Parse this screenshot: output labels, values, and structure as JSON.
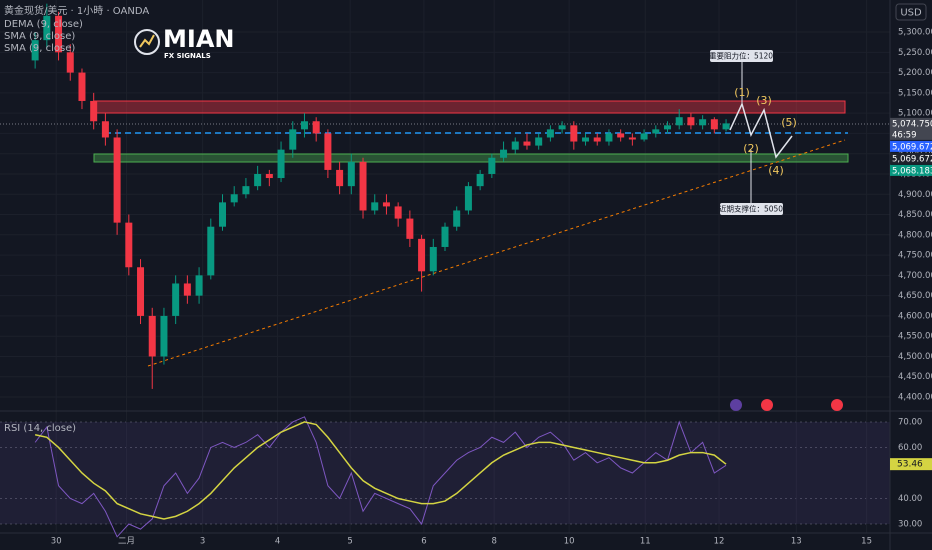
{
  "header": {
    "symbol": "黄金现货/美元 · 1小時 · OANDA",
    "indicators": [
      "DEMA (9, close)",
      "SMA (9, close)",
      "SMA (9, close)"
    ],
    "logo": "MIAN",
    "logo_sub": "FX SIGNALS",
    "currency": "USD"
  },
  "annotations": {
    "waves": [
      "(1)",
      "(2)",
      "(3)",
      "(4)",
      "(5)"
    ],
    "resistance": "重要阻力位：5120",
    "support": "近期支撑位：5050"
  },
  "chart_data": [
    {
      "type": "candlestick",
      "up_color": "#089981",
      "down_color": "#f23645",
      "x": [
        3,
        4,
        5,
        6,
        7,
        8,
        9,
        10,
        11,
        12,
        13,
        14,
        15,
        16,
        17,
        18,
        19,
        20,
        21,
        22,
        23,
        24,
        25,
        26,
        27,
        28,
        29,
        30,
        31,
        32,
        33,
        34,
        35,
        36,
        37,
        38,
        39,
        40,
        41,
        42,
        43,
        44,
        45,
        46,
        47,
        48,
        49,
        50,
        51,
        52,
        53,
        54,
        55,
        56,
        57,
        58,
        59,
        60,
        61,
        62
      ],
      "open": [
        5230,
        5280,
        5340,
        5250,
        5200,
        5130,
        5080,
        5040,
        4830,
        4720,
        4600,
        4500,
        4600,
        4680,
        4650,
        4700,
        4820,
        4880,
        4900,
        4920,
        4950,
        4940,
        5010,
        5060,
        5080,
        5050,
        4960,
        4920,
        4980,
        4860,
        4880,
        4870,
        4840,
        4790,
        4710,
        4770,
        4820,
        4860,
        4920,
        4950,
        4990,
        5010,
        5030,
        5020,
        5040,
        5060,
        5070,
        5030,
        5040,
        5030,
        5050,
        5040,
        5035,
        5050,
        5060,
        5070,
        5090,
        5070,
        5085,
        5060
      ],
      "high": [
        5300,
        5370,
        5350,
        5270,
        5210,
        5150,
        5100,
        5060,
        4850,
        4740,
        4620,
        4620,
        4700,
        4700,
        4720,
        4840,
        4900,
        4920,
        4940,
        4970,
        4960,
        5030,
        5080,
        5100,
        5090,
        5060,
        4980,
        5000,
        4990,
        4900,
        4900,
        4880,
        4860,
        4800,
        4790,
        4830,
        4870,
        4930,
        4960,
        5000,
        5030,
        5040,
        5050,
        5050,
        5070,
        5080,
        5080,
        5050,
        5050,
        5060,
        5060,
        5050,
        5060,
        5070,
        5080,
        5110,
        5100,
        5095,
        5090,
        5085
      ],
      "low": [
        5210,
        5260,
        5230,
        5180,
        5110,
        5060,
        5020,
        4800,
        4700,
        4580,
        4420,
        4480,
        4580,
        4630,
        4630,
        4690,
        4810,
        4870,
        4890,
        4910,
        4920,
        4930,
        4990,
        5040,
        5030,
        4940,
        4900,
        4900,
        4840,
        4850,
        4850,
        4820,
        4770,
        4660,
        4700,
        4760,
        4810,
        4850,
        4910,
        4940,
        4980,
        5000,
        5010,
        5010,
        5030,
        5050,
        5010,
        5020,
        5020,
        5020,
        5030,
        5020,
        5030,
        5040,
        5050,
        5060,
        5060,
        5060,
        5050,
        5055
      ],
      "close": [
        5280,
        5340,
        5250,
        5200,
        5130,
        5080,
        5040,
        4830,
        4720,
        4600,
        4500,
        4600,
        4680,
        4650,
        4700,
        4820,
        4880,
        4900,
        4920,
        4950,
        4940,
        5010,
        5060,
        5080,
        5050,
        4960,
        4920,
        4980,
        4860,
        4880,
        4870,
        4840,
        4790,
        4710,
        4770,
        4820,
        4860,
        4920,
        4950,
        4990,
        5010,
        5030,
        5020,
        5040,
        5060,
        5070,
        5030,
        5040,
        5030,
        5050,
        5040,
        5035,
        5050,
        5060,
        5070,
        5090,
        5070,
        5085,
        5060,
        5074.75
      ],
      "xlim": [
        0,
        76
      ],
      "ylim": [
        4368,
        5379
      ],
      "yticks": [
        {
          "value": 4400,
          "label": "4,400.000"
        },
        {
          "value": 4450,
          "label": "4,450.000"
        },
        {
          "value": 4500,
          "label": "4,500.000"
        },
        {
          "value": 4550,
          "label": "4,550.000"
        },
        {
          "value": 4600,
          "label": "4,600.000"
        },
        {
          "value": 4650,
          "label": "4,650.000"
        },
        {
          "value": 4700,
          "label": "4,700.000"
        },
        {
          "value": 4750,
          "label": "4,750.000"
        },
        {
          "value": 4800,
          "label": "4,800.000"
        },
        {
          "value": 4850,
          "label": "4,850.000"
        },
        {
          "value": 4900,
          "label": "4,900.000"
        },
        {
          "value": 4950,
          "label": "4,950.000"
        },
        {
          "value": 5000,
          "label": "5,000.000"
        },
        {
          "value": 5050,
          "label": "5,050.000"
        },
        {
          "value": 5100,
          "label": "5,100.000"
        },
        {
          "value": 5150,
          "label": "5,150.000"
        },
        {
          "value": 5200,
          "label": "5,200.000"
        },
        {
          "value": 5250,
          "label": "5,250.000"
        },
        {
          "value": 5300,
          "label": "5,300.000"
        }
      ],
      "price_tags": [
        {
          "value": 5074.75,
          "label": "5,074.750",
          "sub": "46:59",
          "color": "#434651"
        },
        {
          "value": 5069.672,
          "label": "5,069.672",
          "color": "#2962ff"
        },
        {
          "value": 5069.672,
          "label": "5,069.672",
          "color": "#1e222d"
        },
        {
          "value": 5068.183,
          "label": "5,068.183",
          "color": "#089981"
        }
      ]
    },
    {
      "type": "line",
      "title": "RSI (14, close)",
      "x": [
        3,
        4,
        5,
        6,
        7,
        8,
        9,
        10,
        11,
        12,
        13,
        14,
        15,
        16,
        17,
        18,
        19,
        20,
        21,
        22,
        23,
        24,
        25,
        26,
        27,
        28,
        29,
        30,
        31,
        32,
        33,
        34,
        35,
        36,
        37,
        38,
        39,
        40,
        41,
        42,
        43,
        44,
        45,
        46,
        47,
        48,
        49,
        50,
        51,
        52,
        53,
        54,
        55,
        56,
        57,
        58,
        59,
        60,
        61,
        62
      ],
      "series": [
        {
          "color": "#7e57c2",
          "values": [
            62,
            68,
            45,
            40,
            38,
            42,
            35,
            25,
            30,
            28,
            32,
            45,
            50,
            42,
            48,
            60,
            62,
            60,
            62,
            65,
            60,
            66,
            70,
            72,
            62,
            45,
            40,
            50,
            35,
            42,
            40,
            38,
            36,
            30,
            45,
            50,
            55,
            58,
            60,
            64,
            62,
            66,
            60,
            64,
            66,
            62,
            55,
            58,
            54,
            56,
            52,
            50,
            54,
            58,
            55,
            70,
            58,
            62,
            50,
            53
          ]
        },
        {
          "color": "#d4d442",
          "values": [
            65,
            64,
            60,
            55,
            50,
            46,
            43,
            38,
            36,
            34,
            33,
            32,
            33,
            35,
            38,
            42,
            47,
            52,
            56,
            60,
            63,
            66,
            68,
            70,
            69,
            64,
            58,
            52,
            47,
            44,
            42,
            40,
            39,
            38,
            38,
            39,
            42,
            46,
            50,
            54,
            57,
            59,
            61,
            62,
            62,
            61,
            60,
            59,
            58,
            57,
            56,
            55,
            54,
            54,
            55,
            57,
            58,
            58,
            57,
            53.46
          ]
        }
      ],
      "xlim": [
        0,
        76
      ],
      "ylim": [
        25.7,
        73.9
      ],
      "yticks": [
        {
          "value": 30,
          "label": "30.00"
        },
        {
          "value": 40,
          "label": "40.00"
        },
        {
          "value": 60,
          "label": "60.00"
        },
        {
          "value": 70,
          "label": "70.00"
        }
      ],
      "xticks": [
        {
          "value": 4.8,
          "label": "30"
        },
        {
          "value": 10.8,
          "label": "二月"
        },
        {
          "value": 17.3,
          "label": "3"
        },
        {
          "value": 23.7,
          "label": "4"
        },
        {
          "value": 29.9,
          "label": "5"
        },
        {
          "value": 36.2,
          "label": "6"
        },
        {
          "value": 42.2,
          "label": "8"
        },
        {
          "value": 48.6,
          "label": "10"
        },
        {
          "value": 55.1,
          "label": "11"
        },
        {
          "value": 61.4,
          "label": "12"
        },
        {
          "value": 68,
          "label": "13"
        },
        {
          "value": 74,
          "label": "15"
        }
      ]
    }
  ]
}
